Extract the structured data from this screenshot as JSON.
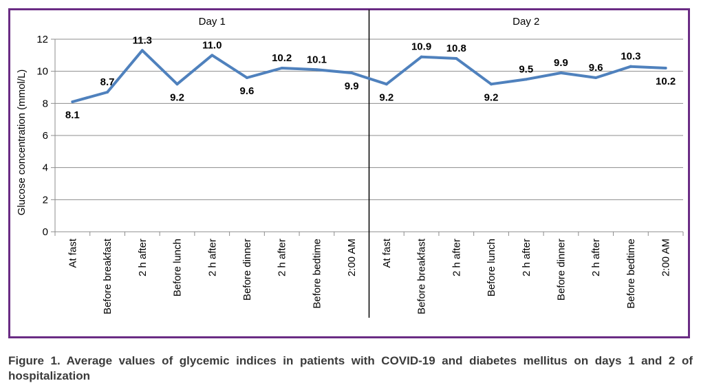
{
  "chart_data": {
    "type": "line",
    "ylabel": "Glucose concentration (mmol/L)",
    "ylim": [
      0,
      12
    ],
    "yticks": [
      0,
      2,
      4,
      6,
      8,
      10,
      12
    ],
    "grid": "horizontal",
    "groups": [
      "Day 1",
      "Day 2"
    ],
    "categories": [
      "At fast",
      "Before breakfast",
      "2 h after",
      "Before lunch",
      "2 h after",
      "Before dinner",
      "2 h after",
      "Before bedtime",
      "2:00 AM",
      "At fast",
      "Before breakfast",
      "2 h after",
      "Before lunch",
      "2 h after",
      "Before dinner",
      "2 h after",
      "Before bedtime",
      "2:00 AM"
    ],
    "series": [
      {
        "values": [
          8.1,
          8.7,
          11.3,
          9.2,
          11.0,
          9.6,
          10.2,
          10.1,
          9.9,
          9.2,
          10.9,
          10.8,
          9.2,
          9.5,
          9.9,
          9.6,
          10.3,
          10.2
        ]
      }
    ],
    "data_labels": [
      "8.1",
      "8.7",
      "11.3",
      "9.2",
      "11.0",
      "9.6",
      "10.2",
      "10.1",
      "9.9",
      "9.2",
      "10.9",
      "10.8",
      "9.2",
      "9.5",
      "9.9",
      "9.6",
      "10.3",
      "10.2"
    ],
    "data_label_side": [
      "below",
      "above",
      "above",
      "below",
      "above",
      "below",
      "above",
      "above",
      "below",
      "below",
      "above",
      "above",
      "below",
      "above",
      "above",
      "above",
      "above",
      "below"
    ],
    "line_color": "#4f81bd",
    "frame_color": "#6a2c84"
  },
  "caption": "Figure 1. Average values of glycemic indices in patients with COVID-19 and diabetes mellitus on days 1 and 2 of hospitalization"
}
